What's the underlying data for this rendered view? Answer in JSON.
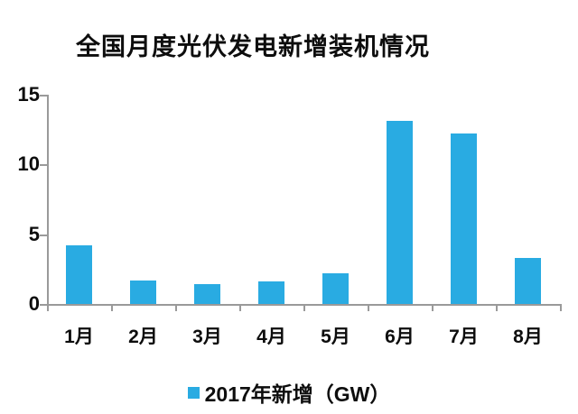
{
  "title": "全国月度光伏发电新增装机情况",
  "legend": {
    "marker": "square-icon",
    "label": "2017年新增（GW）"
  },
  "colors": {
    "bar": "#29ABE2",
    "axis": "#9A9A9A",
    "text": "#0D0D0D",
    "background": "#FFFFFF"
  },
  "chart_data": {
    "type": "bar",
    "title": "全国月度光伏发电新增装机情况",
    "categories": [
      "1月",
      "2月",
      "3月",
      "4月",
      "5月",
      "6月",
      "7月",
      "8月"
    ],
    "series": [
      {
        "name": "2017年新增（GW）",
        "values": [
          4.2,
          1.7,
          1.4,
          1.6,
          2.2,
          13.1,
          12.2,
          3.3
        ]
      }
    ],
    "xlabel": "",
    "ylabel": "",
    "ylim": [
      0,
      15
    ],
    "yticks": [
      0,
      5,
      10,
      15
    ],
    "grid": false,
    "legend_position": "bottom"
  }
}
